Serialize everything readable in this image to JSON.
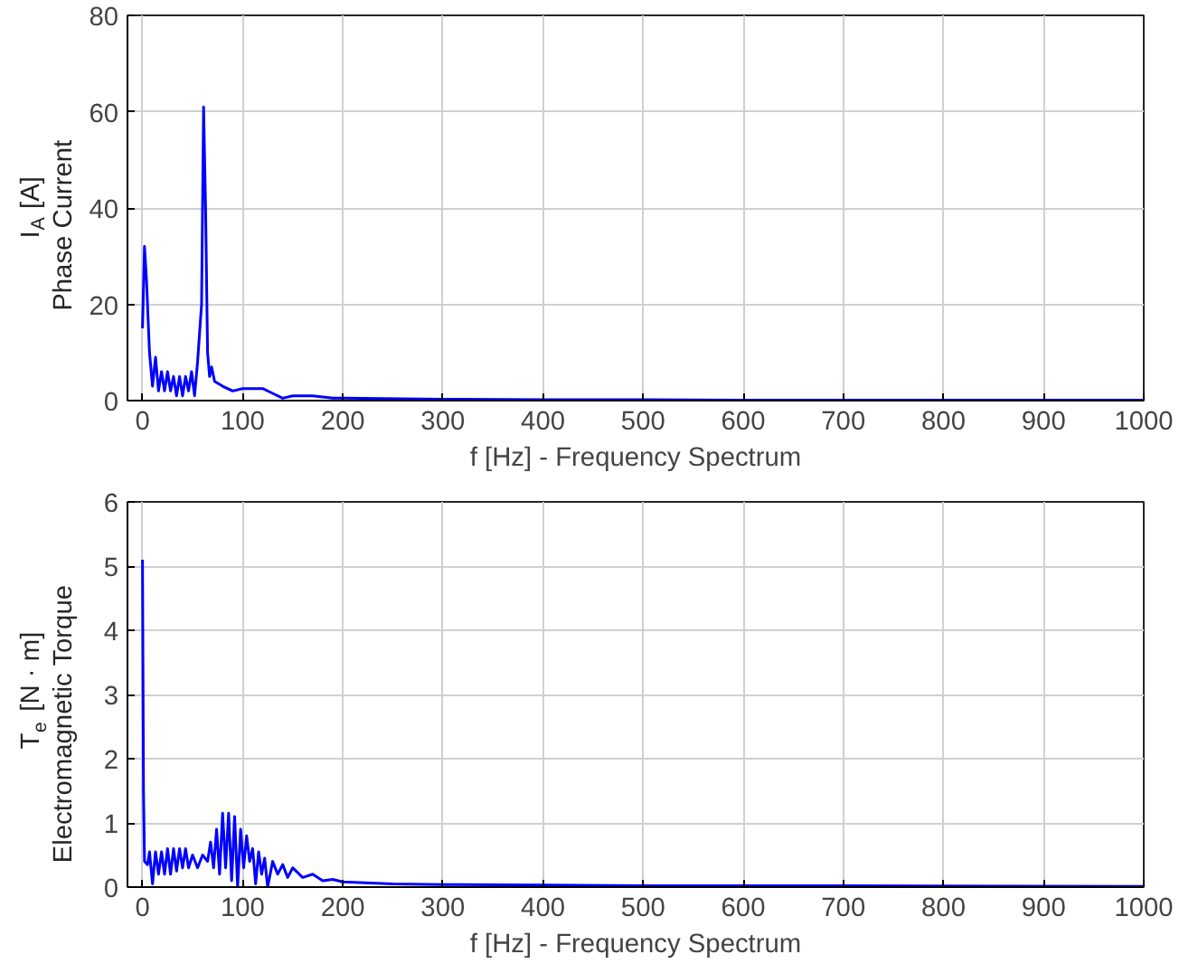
{
  "chart_data": [
    {
      "type": "line",
      "xlabel": "f [Hz] - Frequency Spectrum",
      "ylabel": "I$_{A}$ [A]\nPhase Current",
      "xlim": [
        -15,
        1000
      ],
      "ylim": [
        0,
        80
      ],
      "xticks": [
        0,
        100,
        200,
        300,
        400,
        500,
        600,
        700,
        800,
        900,
        1000
      ],
      "yticks": [
        0,
        20,
        40,
        60,
        80
      ],
      "grid": true,
      "series": [
        {
          "color": "#0000ff",
          "x": [
            0,
            2,
            4,
            7,
            10,
            13,
            16,
            19,
            22,
            25,
            28,
            31,
            34,
            37,
            40,
            43,
            46,
            49,
            52,
            55,
            57,
            59,
            61,
            63,
            65,
            67,
            69,
            72,
            80,
            90,
            100,
            110,
            120,
            130,
            140,
            150,
            170,
            190,
            200,
            300,
            400,
            500,
            600,
            700,
            800,
            900,
            1000
          ],
          "values": [
            15,
            32,
            25,
            10,
            3,
            9,
            2,
            6,
            2,
            6,
            2,
            5,
            1,
            5,
            1,
            5,
            2,
            6,
            1,
            8,
            14,
            20,
            61,
            40,
            10,
            5,
            7,
            4,
            3,
            2,
            2.5,
            2.5,
            2.5,
            1.5,
            0.5,
            1,
            1,
            0.5,
            0.5,
            0.3,
            0.2,
            0.2,
            0.1,
            0.1,
            0.1,
            0.1,
            0.1
          ]
        }
      ]
    },
    {
      "type": "line",
      "xlabel": "f [Hz] - Frequency Spectrum",
      "ylabel": "T$_{e}$ [N · m]\nElectromagnetic Torque",
      "xlim": [
        -15,
        1000
      ],
      "ylim": [
        0,
        6
      ],
      "xticks": [
        0,
        100,
        200,
        300,
        400,
        500,
        600,
        700,
        800,
        900,
        1000
      ],
      "yticks": [
        0,
        1,
        2,
        3,
        4,
        5,
        6
      ],
      "grid": true,
      "series": [
        {
          "color": "#0000ff",
          "x": [
            0,
            1,
            2,
            5,
            7,
            10,
            13,
            16,
            19,
            22,
            25,
            28,
            31,
            34,
            37,
            40,
            43,
            46,
            50,
            55,
            60,
            65,
            68,
            71,
            74,
            77,
            80,
            83,
            86,
            89,
            92,
            95,
            98,
            101,
            104,
            107,
            110,
            113,
            116,
            119,
            122,
            125,
            130,
            135,
            140,
            145,
            150,
            160,
            170,
            180,
            190,
            200,
            250,
            300,
            400,
            500,
            700,
            1000
          ],
          "values": [
            5.1,
            1.5,
            0.4,
            0.35,
            0.55,
            0.05,
            0.55,
            0.2,
            0.55,
            0.2,
            0.6,
            0.2,
            0.6,
            0.25,
            0.6,
            0.3,
            0.6,
            0.3,
            0.5,
            0.3,
            0.5,
            0.4,
            0.7,
            0.3,
            0.9,
            0.2,
            1.15,
            0.3,
            1.15,
            0.1,
            1.1,
            0.0,
            0.9,
            0.3,
            0.8,
            0.4,
            0.6,
            0.05,
            0.55,
            0.2,
            0.45,
            0.0,
            0.4,
            0.2,
            0.35,
            0.15,
            0.3,
            0.15,
            0.2,
            0.1,
            0.12,
            0.08,
            0.05,
            0.04,
            0.03,
            0.02,
            0.02,
            0.01
          ]
        }
      ]
    }
  ]
}
